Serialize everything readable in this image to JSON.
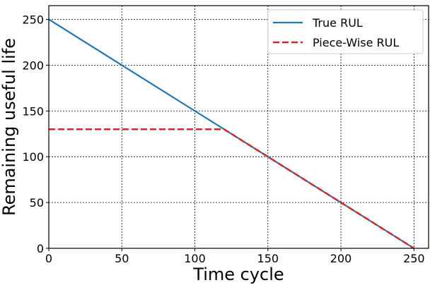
{
  "chart_data": {
    "type": "line",
    "title": "",
    "xlabel": "Time cycle",
    "ylabel": "Remaining useful life",
    "xlim": [
      0,
      260
    ],
    "ylim": [
      0,
      265
    ],
    "xticks": [
      0,
      50,
      100,
      150,
      200,
      250
    ],
    "yticks": [
      0,
      50,
      100,
      150,
      200,
      250
    ],
    "xtick_labels": [
      "0",
      "50",
      "100",
      "150",
      "200",
      "250"
    ],
    "ytick_labels": [
      "0",
      "50",
      "100",
      "150",
      "200",
      "250"
    ],
    "grid": true,
    "legend_position": "top-right",
    "series": [
      {
        "name": "True RUL",
        "color": "#1f77b4",
        "style": "solid",
        "x": [
          0,
          250
        ],
        "y": [
          250,
          0
        ]
      },
      {
        "name": "Piece-Wise RUL",
        "color": "#d62728",
        "style": "dashed",
        "x": [
          0,
          120,
          250
        ],
        "y": [
          130,
          130,
          0
        ]
      }
    ]
  }
}
